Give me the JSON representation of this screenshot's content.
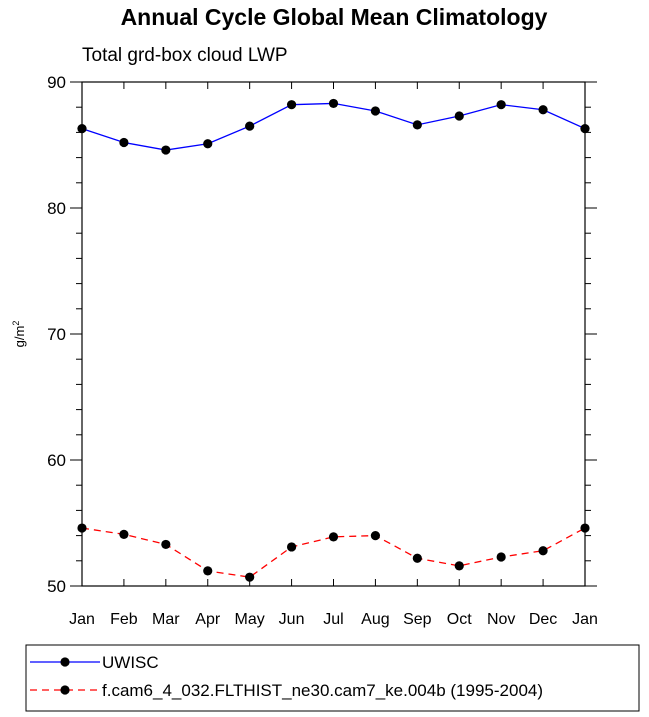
{
  "chart_data": {
    "type": "line",
    "title": "Annual Cycle Global Mean Climatology",
    "subtitle": "Total grd-box cloud LWP",
    "xlabel": "",
    "ylabel": "g/m",
    "ylabel_superscript": "2",
    "categories": [
      "Jan",
      "Feb",
      "Mar",
      "Apr",
      "May",
      "Jun",
      "Jul",
      "Aug",
      "Sep",
      "Oct",
      "Nov",
      "Dec",
      "Jan"
    ],
    "ylim": [
      50,
      90
    ],
    "yticks": [
      50,
      60,
      70,
      80,
      90
    ],
    "grid": false,
    "legend_placement": "bottom",
    "series": [
      {
        "name": "UWISC",
        "color": "#0000ff",
        "dash": "solid",
        "marker": "filled-circle",
        "values": [
          86.3,
          85.2,
          84.6,
          85.1,
          86.5,
          88.2,
          88.3,
          87.7,
          86.6,
          87.3,
          88.2,
          87.8,
          86.3
        ]
      },
      {
        "name": "f.cam6_4_032.FLTHIST_ne30.cam7_ke.004b (1995-2004)",
        "color": "#ff0000",
        "dash": "dashed",
        "marker": "filled-circle",
        "values": [
          54.6,
          54.1,
          53.3,
          51.2,
          50.7,
          53.1,
          53.9,
          54.0,
          52.2,
          51.6,
          52.3,
          52.8,
          54.6
        ]
      }
    ]
  }
}
